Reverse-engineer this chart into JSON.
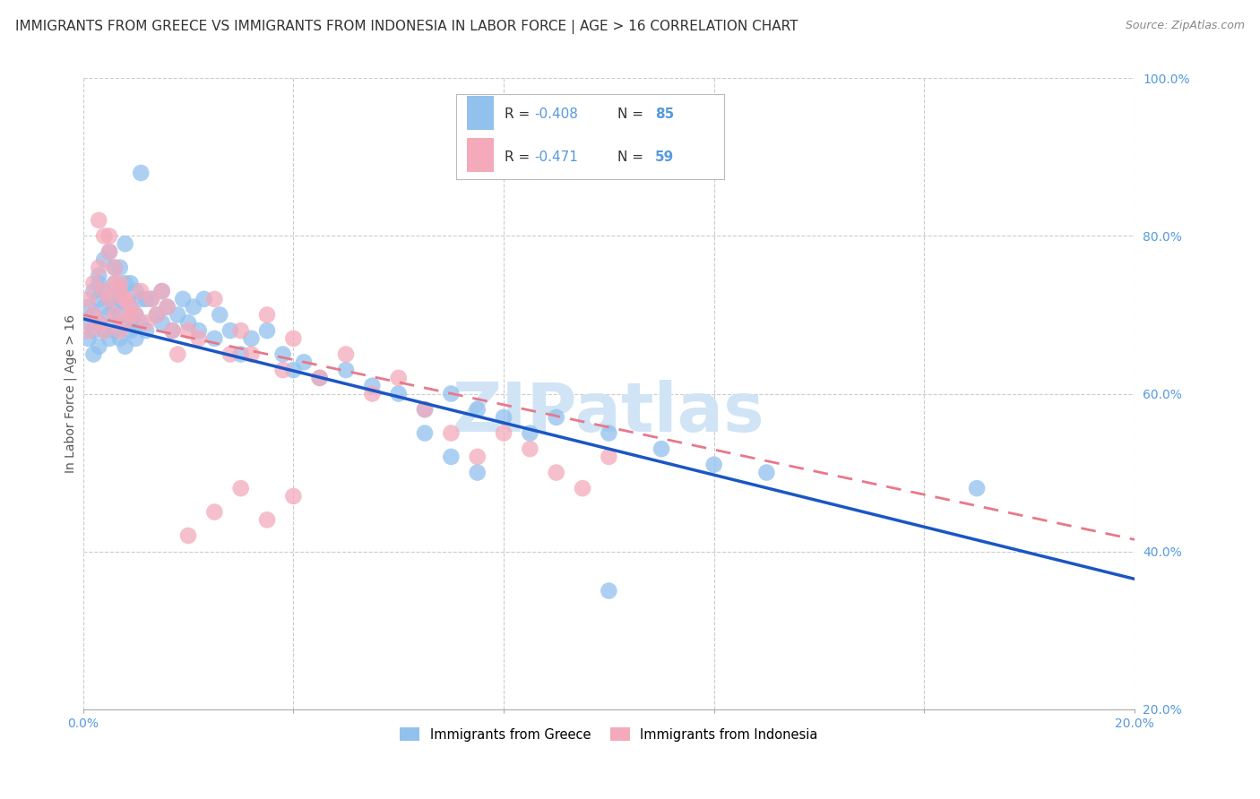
{
  "title": "IMMIGRANTS FROM GREECE VS IMMIGRANTS FROM INDONESIA IN LABOR FORCE | AGE > 16 CORRELATION CHART",
  "source": "Source: ZipAtlas.com",
  "ylabel": "In Labor Force | Age > 16",
  "xlim": [
    0.0,
    0.2
  ],
  "ylim": [
    0.2,
    1.0
  ],
  "xticks": [
    0.0,
    0.04,
    0.08,
    0.12,
    0.16,
    0.2
  ],
  "yticks": [
    0.2,
    0.4,
    0.6,
    0.8,
    1.0
  ],
  "legend_greece_R": "-0.408",
  "legend_greece_N": "85",
  "legend_indonesia_R": "-0.471",
  "legend_indonesia_N": "59",
  "color_greece": "#92C1EE",
  "color_indonesia": "#F4AABB",
  "color_greece_line": "#1A56C4",
  "color_indonesia_line": "#E8788A",
  "background_color": "#ffffff",
  "grid_color": "#cccccc",
  "axis_color": "#5599DD",
  "title_color": "#333333",
  "source_color": "#888888",
  "watermark": "ZIPatlas",
  "watermark_color": "#D0E4F5",
  "greece_x": [
    0.001,
    0.001,
    0.001,
    0.002,
    0.002,
    0.002,
    0.002,
    0.003,
    0.003,
    0.003,
    0.003,
    0.004,
    0.004,
    0.004,
    0.005,
    0.005,
    0.005,
    0.006,
    0.006,
    0.006,
    0.007,
    0.007,
    0.007,
    0.008,
    0.008,
    0.009,
    0.009,
    0.01,
    0.01,
    0.011,
    0.011,
    0.012,
    0.013,
    0.014,
    0.015,
    0.015,
    0.016,
    0.017,
    0.018,
    0.019,
    0.02,
    0.021,
    0.022,
    0.023,
    0.025,
    0.026,
    0.028,
    0.03,
    0.032,
    0.035,
    0.038,
    0.04,
    0.042,
    0.045,
    0.05,
    0.055,
    0.06,
    0.065,
    0.07,
    0.075,
    0.08,
    0.085,
    0.09,
    0.1,
    0.11,
    0.12,
    0.13,
    0.007,
    0.008,
    0.009,
    0.003,
    0.004,
    0.005,
    0.006,
    0.007,
    0.008,
    0.009,
    0.01,
    0.011,
    0.012,
    0.065,
    0.07,
    0.075,
    0.17,
    0.1
  ],
  "greece_y": [
    0.69,
    0.71,
    0.67,
    0.7,
    0.73,
    0.68,
    0.65,
    0.72,
    0.69,
    0.66,
    0.74,
    0.71,
    0.68,
    0.73,
    0.7,
    0.67,
    0.72,
    0.71,
    0.68,
    0.74,
    0.7,
    0.67,
    0.73,
    0.69,
    0.66,
    0.71,
    0.68,
    0.7,
    0.67,
    0.72,
    0.69,
    0.68,
    0.72,
    0.7,
    0.73,
    0.69,
    0.71,
    0.68,
    0.7,
    0.72,
    0.69,
    0.71,
    0.68,
    0.72,
    0.67,
    0.7,
    0.68,
    0.65,
    0.67,
    0.68,
    0.65,
    0.63,
    0.64,
    0.62,
    0.63,
    0.61,
    0.6,
    0.58,
    0.6,
    0.58,
    0.57,
    0.55,
    0.57,
    0.55,
    0.53,
    0.51,
    0.5,
    0.76,
    0.79,
    0.74,
    0.75,
    0.77,
    0.78,
    0.76,
    0.72,
    0.74,
    0.69,
    0.73,
    0.88,
    0.72,
    0.55,
    0.52,
    0.5,
    0.48,
    0.35
  ],
  "indonesia_x": [
    0.001,
    0.001,
    0.002,
    0.002,
    0.003,
    0.003,
    0.004,
    0.004,
    0.005,
    0.005,
    0.006,
    0.006,
    0.007,
    0.007,
    0.008,
    0.008,
    0.009,
    0.01,
    0.011,
    0.012,
    0.013,
    0.014,
    0.015,
    0.016,
    0.017,
    0.018,
    0.02,
    0.022,
    0.025,
    0.028,
    0.03,
    0.032,
    0.035,
    0.038,
    0.04,
    0.045,
    0.05,
    0.055,
    0.06,
    0.065,
    0.07,
    0.075,
    0.08,
    0.085,
    0.09,
    0.095,
    0.1,
    0.003,
    0.004,
    0.005,
    0.006,
    0.007,
    0.008,
    0.009,
    0.02,
    0.025,
    0.03,
    0.035,
    0.04
  ],
  "indonesia_y": [
    0.72,
    0.68,
    0.74,
    0.7,
    0.76,
    0.69,
    0.73,
    0.68,
    0.8,
    0.72,
    0.74,
    0.7,
    0.73,
    0.68,
    0.72,
    0.69,
    0.71,
    0.7,
    0.73,
    0.69,
    0.72,
    0.7,
    0.73,
    0.71,
    0.68,
    0.65,
    0.68,
    0.67,
    0.72,
    0.65,
    0.68,
    0.65,
    0.7,
    0.63,
    0.67,
    0.62,
    0.65,
    0.6,
    0.62,
    0.58,
    0.55,
    0.52,
    0.55,
    0.53,
    0.5,
    0.48,
    0.52,
    0.82,
    0.8,
    0.78,
    0.76,
    0.74,
    0.72,
    0.7,
    0.42,
    0.45,
    0.48,
    0.44,
    0.47
  ],
  "greece_line_x0": 0.0,
  "greece_line_x1": 0.2,
  "greece_line_y0": 0.695,
  "greece_line_y1": 0.365,
  "indonesia_line_x0": 0.0,
  "indonesia_line_x1": 0.2,
  "indonesia_line_y0": 0.7,
  "indonesia_line_y1": 0.415
}
